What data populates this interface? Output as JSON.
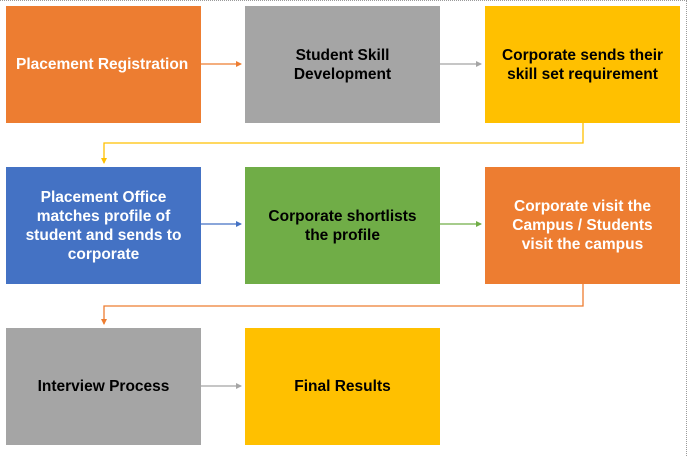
{
  "steps": [
    {
      "id": "placement-registration",
      "label": "Placement Registration",
      "color": "#ed7d31",
      "text_color": "#ffffff"
    },
    {
      "id": "student-skill-development",
      "label": "Student Skill Development",
      "color": "#a5a5a5",
      "text_color": "#000000"
    },
    {
      "id": "corporate-sends-requirement",
      "label": "Corporate sends their skill set requirement",
      "color": "#ffc000",
      "text_color": "#000000"
    },
    {
      "id": "placement-office-matches",
      "label": "Placement Office matches profile of student and sends to corporate",
      "color": "#4472c4",
      "text_color": "#ffffff"
    },
    {
      "id": "corporate-shortlists",
      "label": "Corporate shortlists the profile",
      "color": "#70ad47",
      "text_color": "#000000"
    },
    {
      "id": "corporate-visit-campus",
      "label": "Corporate visit the Campus / Students visit the campus",
      "color": "#ed7d31",
      "text_color": "#ffffff"
    },
    {
      "id": "interview-process",
      "label": "Interview Process",
      "color": "#a5a5a5",
      "text_color": "#000000"
    },
    {
      "id": "final-results",
      "label": "Final Results",
      "color": "#ffc000",
      "text_color": "#000000"
    }
  ]
}
